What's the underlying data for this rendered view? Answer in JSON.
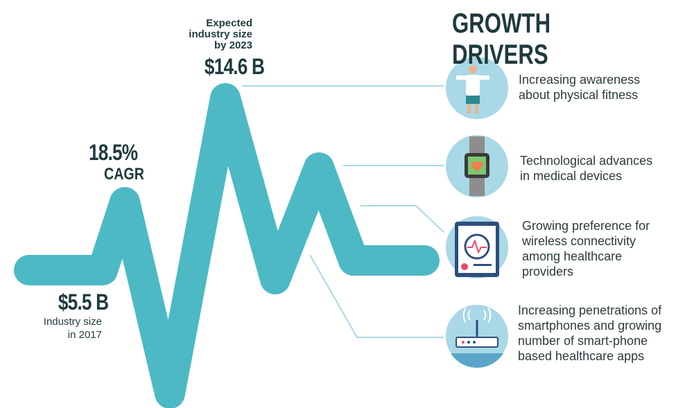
{
  "forecast": {
    "label_lines": [
      "Expected",
      "industry size",
      "by 2023"
    ],
    "value": "$14.6 B"
  },
  "cagr": {
    "value": "18.5%",
    "label": "CAGR"
  },
  "base": {
    "value": "$5.5 B",
    "label_lines": [
      "Industry size",
      "in 2017"
    ]
  },
  "drivers": {
    "title": "GROWTH DRIVERS",
    "items": [
      {
        "lines": [
          "Increasing awareness",
          "about physical fitness"
        ]
      },
      {
        "lines": [
          "Technological advances",
          "in medical devices"
        ]
      },
      {
        "lines": [
          "Growing preference for",
          "wireless connectivity",
          "among healthcare",
          "providers"
        ]
      },
      {
        "lines": [
          "Increasing penetrations of",
          "smartphones and growing",
          "number of smart-phone",
          "based healthcare apps"
        ]
      }
    ]
  }
}
